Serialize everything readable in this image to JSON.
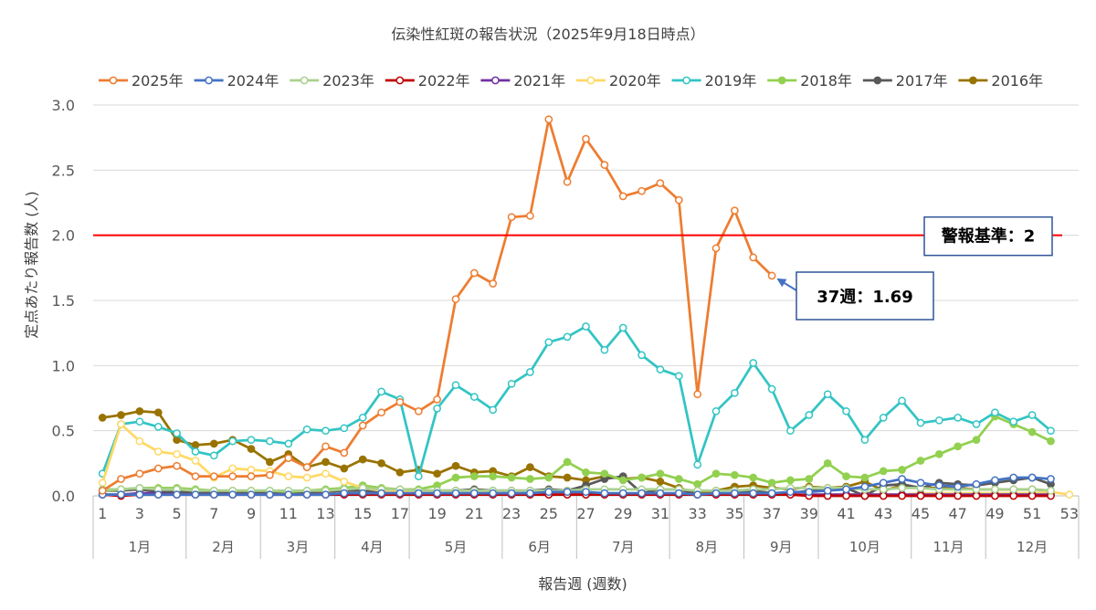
{
  "chart_data": {
    "type": "line",
    "title": "伝染性紅斑の報告状況（2025年9月18日時点）",
    "xlabel": "報告週 (週数)",
    "ylabel": "定点あたり報告数 (人)",
    "ylim": [
      0,
      3
    ],
    "y_tick_labels": [
      "0.0",
      "0.5",
      "1.0",
      "1.5",
      "2.0",
      "2.5",
      "3.0"
    ],
    "x_range": [
      1,
      53
    ],
    "x_tick_labels": [
      "1",
      "3",
      "5",
      "7",
      "9",
      "11",
      "13",
      "15",
      "17",
      "19",
      "21",
      "23",
      "25",
      "27",
      "29",
      "31",
      "33",
      "35",
      "37",
      "39",
      "41",
      "43",
      "45",
      "47",
      "49",
      "51",
      "53"
    ],
    "months": [
      {
        "label": "1月",
        "start": 1,
        "end": 5
      },
      {
        "label": "2月",
        "start": 6,
        "end": 9
      },
      {
        "label": "3月",
        "start": 10,
        "end": 13
      },
      {
        "label": "4月",
        "start": 14,
        "end": 17
      },
      {
        "label": "5月",
        "start": 18,
        "end": 22
      },
      {
        "label": "6月",
        "start": 23,
        "end": 26
      },
      {
        "label": "7月",
        "start": 27,
        "end": 31
      },
      {
        "label": "8月",
        "start": 32,
        "end": 35
      },
      {
        "label": "9月",
        "start": 36,
        "end": 39
      },
      {
        "label": "10月",
        "start": 40,
        "end": 44
      },
      {
        "label": "11月",
        "start": 45,
        "end": 48
      },
      {
        "label": "12月",
        "start": 49,
        "end": 53
      }
    ],
    "grid": true,
    "legend": "top",
    "series": [
      {
        "name": "2025年",
        "color": "#ED7D31",
        "marker_fill": "#FFFFFF",
        "values": [
          0.04,
          0.13,
          0.17,
          0.21,
          0.23,
          0.15,
          0.15,
          0.15,
          0.15,
          0.16,
          0.29,
          0.22,
          0.38,
          0.33,
          0.54,
          0.64,
          0.72,
          0.65,
          0.74,
          1.51,
          1.71,
          1.63,
          2.14,
          2.15,
          2.89,
          2.41,
          2.74,
          2.54,
          2.3,
          2.34,
          2.4,
          2.27,
          0.78,
          1.9,
          2.19,
          1.83,
          1.69
        ]
      },
      {
        "name": "2024年",
        "color": "#4472C4",
        "marker_fill": "#FFFFFF",
        "values": [
          0.01,
          0.01,
          0.01,
          0.01,
          0.01,
          0.01,
          0.01,
          0.01,
          0.01,
          0.01,
          0.01,
          0.01,
          0.01,
          0.02,
          0.02,
          0.02,
          0.02,
          0.02,
          0.02,
          0.02,
          0.02,
          0.02,
          0.02,
          0.02,
          0.03,
          0.03,
          0.03,
          0.02,
          0.02,
          0.02,
          0.02,
          0.02,
          0.01,
          0.02,
          0.02,
          0.02,
          0.02,
          0.03,
          0.03,
          0.04,
          0.05,
          0.07,
          0.1,
          0.13,
          0.1,
          0.08,
          0.07,
          0.09,
          0.12,
          0.14,
          0.14,
          0.13
        ]
      },
      {
        "name": "2023年",
        "color": "#A9D18E",
        "marker_fill": "#FFFFFF",
        "values": [
          0.05,
          0.05,
          0.06,
          0.05,
          0.05,
          0.04,
          0.04,
          0.04,
          0.04,
          0.04,
          0.04,
          0.04,
          0.04,
          0.05,
          0.06,
          0.05,
          0.05,
          0.04,
          0.04,
          0.04,
          0.04,
          0.04,
          0.04,
          0.04,
          0.04,
          0.04,
          0.05,
          0.05,
          0.05,
          0.05,
          0.05,
          0.05,
          0.04,
          0.04,
          0.04,
          0.05,
          0.05,
          0.06,
          0.06,
          0.06,
          0.06,
          0.05,
          0.05,
          0.06,
          0.06,
          0.05,
          0.05,
          0.05,
          0.05,
          0.05,
          0.05,
          0.04
        ]
      },
      {
        "name": "2022年",
        "color": "#C00000",
        "marker_fill": "#FFFFFF",
        "values": [
          0.01,
          0.0,
          0.01,
          0.01,
          0.01,
          0.01,
          0.01,
          0.01,
          0.01,
          0.01,
          0.01,
          0.01,
          0.01,
          0.01,
          0.01,
          0.01,
          0.01,
          0.01,
          0.01,
          0.01,
          0.01,
          0.01,
          0.01,
          0.01,
          0.01,
          0.01,
          0.01,
          0.01,
          0.01,
          0.01,
          0.01,
          0.01,
          0.01,
          0.01,
          0.01,
          0.01,
          0.01,
          0.01,
          0.0,
          0.0,
          0.0,
          0.0,
          0.0,
          0.0,
          0.0,
          0.0,
          0.0,
          0.0,
          0.0,
          0.0,
          0.0,
          0.0
        ]
      },
      {
        "name": "2021年",
        "color": "#7030A0",
        "marker_fill": "#FFFFFF",
        "values": [
          0.01,
          0.01,
          0.02,
          0.02,
          0.01,
          0.01,
          0.01,
          0.01,
          0.01,
          0.01,
          0.01,
          0.01,
          0.01,
          0.01,
          0.02,
          0.02,
          0.02,
          0.01,
          0.01,
          0.01,
          0.01,
          0.01,
          0.01,
          0.01,
          0.01,
          0.01,
          0.01,
          0.01,
          0.01,
          0.01,
          0.01,
          0.01,
          0.01,
          0.01,
          0.01,
          0.01,
          0.01,
          0.01,
          0.01,
          0.01,
          0.01,
          0.01,
          0.01,
          0.01,
          0.01,
          0.01,
          0.01,
          0.01,
          0.01,
          0.01,
          0.01,
          0.01
        ]
      },
      {
        "name": "2020年",
        "color": "#FFD966",
        "marker_fill": "#FFFFFF",
        "values": [
          0.1,
          0.55,
          0.42,
          0.34,
          0.32,
          0.27,
          0.14,
          0.21,
          0.2,
          0.19,
          0.15,
          0.14,
          0.17,
          0.11,
          0.06,
          0.04,
          0.03,
          0.03,
          0.02,
          0.02,
          0.02,
          0.02,
          0.01,
          0.01,
          0.01,
          0.01,
          0.01,
          0.01,
          0.01,
          0.01,
          0.01,
          0.01,
          0.01,
          0.01,
          0.01,
          0.01,
          0.01,
          0.01,
          0.01,
          0.01,
          0.01,
          0.01,
          0.01,
          0.01,
          0.02,
          0.02,
          0.02,
          0.02,
          0.02,
          0.02,
          0.02,
          0.03,
          0.01
        ]
      },
      {
        "name": "2019年",
        "color": "#33C4C4",
        "marker_fill": "#FFFFFF",
        "values": [
          0.17,
          0.55,
          0.57,
          0.53,
          0.48,
          0.34,
          0.31,
          0.42,
          0.43,
          0.42,
          0.4,
          0.51,
          0.5,
          0.52,
          0.6,
          0.8,
          0.74,
          0.15,
          0.67,
          0.85,
          0.76,
          0.66,
          0.86,
          0.95,
          1.18,
          1.22,
          1.3,
          1.12,
          1.29,
          1.08,
          0.97,
          0.92,
          0.24,
          0.65,
          0.79,
          1.02,
          0.82,
          0.5,
          0.62,
          0.78,
          0.65,
          0.43,
          0.6,
          0.73,
          0.56,
          0.58,
          0.6,
          0.55,
          0.64,
          0.57,
          0.62,
          0.5
        ]
      },
      {
        "name": "2018年",
        "color": "#92D050",
        "marker_fill": "#92D050",
        "values": [
          0.04,
          0.05,
          0.06,
          0.06,
          0.06,
          0.05,
          0.04,
          0.04,
          0.04,
          0.04,
          0.03,
          0.04,
          0.05,
          0.06,
          0.08,
          0.06,
          0.05,
          0.05,
          0.08,
          0.14,
          0.15,
          0.15,
          0.14,
          0.13,
          0.14,
          0.26,
          0.18,
          0.17,
          0.12,
          0.14,
          0.17,
          0.13,
          0.09,
          0.17,
          0.16,
          0.14,
          0.1,
          0.12,
          0.13,
          0.25,
          0.15,
          0.14,
          0.19,
          0.2,
          0.27,
          0.32,
          0.38,
          0.43,
          0.61,
          0.55,
          0.49,
          0.42
        ]
      },
      {
        "name": "2017年",
        "color": "#595959",
        "marker_fill": "#595959",
        "values": [
          0.04,
          0.04,
          0.05,
          0.03,
          0.03,
          0.03,
          0.02,
          0.03,
          0.03,
          0.03,
          0.03,
          0.03,
          0.03,
          0.04,
          0.04,
          0.03,
          0.03,
          0.04,
          0.04,
          0.04,
          0.05,
          0.04,
          0.04,
          0.04,
          0.05,
          0.04,
          0.08,
          0.13,
          0.15,
          0.02,
          0.05,
          0.05,
          0.01,
          0.01,
          0.02,
          0.04,
          0.02,
          0.02,
          0.04,
          0.04,
          0.06,
          0.0,
          0.08,
          0.09,
          0.06,
          0.1,
          0.09,
          0.08,
          0.1,
          0.12,
          0.14,
          0.09
        ]
      },
      {
        "name": "2016年",
        "color": "#997300",
        "marker_fill": "#997300",
        "values": [
          0.6,
          0.62,
          0.65,
          0.64,
          0.43,
          0.39,
          0.4,
          0.43,
          0.36,
          0.26,
          0.32,
          0.22,
          0.26,
          0.21,
          0.28,
          0.25,
          0.18,
          0.2,
          0.17,
          0.23,
          0.18,
          0.19,
          0.15,
          0.22,
          0.15,
          0.14,
          0.12,
          0.15,
          0.13,
          0.14,
          0.11,
          0.06,
          0.02,
          0.04,
          0.07,
          0.08,
          0.06,
          0.05,
          0.07,
          0.06,
          0.07,
          0.11,
          0.04,
          0.08,
          0.06,
          0.06,
          0.06,
          0.05,
          0.05,
          0.05,
          0.05,
          0.04
        ]
      }
    ],
    "reference_line": {
      "label": "警報基準：2",
      "value": 2,
      "color": "#FF0000"
    },
    "annotation": {
      "label": "37週：1.69",
      "series": "2025年",
      "week": 37
    }
  }
}
